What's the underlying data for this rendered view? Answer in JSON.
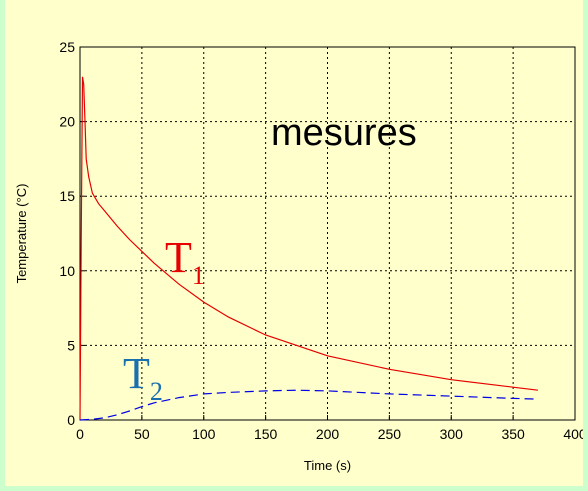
{
  "chart_data": {
    "type": "line",
    "title": "",
    "xlabel": "Time (s)",
    "ylabel": "Temperature (°C)",
    "xlim": [
      0,
      400
    ],
    "ylim": [
      0,
      25
    ],
    "xticks": [
      0,
      50,
      100,
      150,
      200,
      250,
      300,
      350,
      400
    ],
    "yticks": [
      0,
      5,
      10,
      15,
      20,
      25
    ],
    "grid": true,
    "annotation": "mesures",
    "series": [
      {
        "name_main": "T",
        "name_sub": "1",
        "color": "#e60000",
        "line_style": "solid",
        "x": [
          0,
          1,
          2,
          3,
          4,
          5,
          7,
          10,
          15,
          20,
          30,
          40,
          50,
          60,
          80,
          100,
          120,
          150,
          200,
          250,
          300,
          350,
          370
        ],
        "y": [
          0,
          12,
          23,
          22.5,
          20,
          17.5,
          16.3,
          15.2,
          14.5,
          14,
          13,
          12.1,
          11.3,
          10.5,
          9.1,
          7.9,
          6.9,
          5.7,
          4.3,
          3.4,
          2.7,
          2.2,
          2.0
        ]
      },
      {
        "name_main": "T",
        "name_sub": "2",
        "color": "#0000e6",
        "line_style": "dashed",
        "x": [
          0,
          10,
          20,
          30,
          40,
          50,
          60,
          80,
          100,
          120,
          150,
          175,
          200,
          250,
          300,
          350,
          370
        ],
        "y": [
          0,
          0.05,
          0.15,
          0.35,
          0.6,
          0.9,
          1.15,
          1.5,
          1.75,
          1.85,
          1.95,
          2.0,
          1.95,
          1.75,
          1.6,
          1.45,
          1.4
        ]
      }
    ]
  }
}
